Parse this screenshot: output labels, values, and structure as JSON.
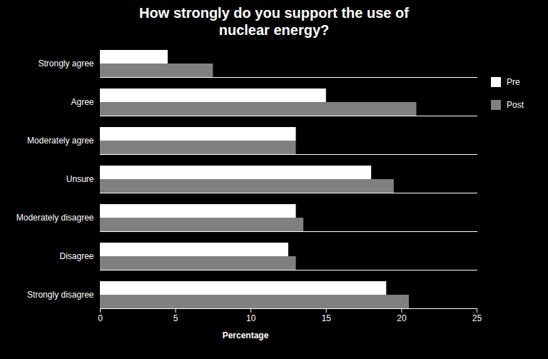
{
  "chart_data": {
    "type": "bar",
    "orientation": "horizontal",
    "title": "How strongly do you support the use of\nnuclear energy?",
    "categories": [
      "Strongly disagree",
      "Disagree",
      "Moderately disagree",
      "Unsure",
      "Moderately agree",
      "Agree",
      "Strongly agree"
    ],
    "series": [
      {
        "name": "Pre",
        "color": "#ffffff",
        "values": [
          19.0,
          12.5,
          13.0,
          18.0,
          13.0,
          15.0,
          4.5
        ]
      },
      {
        "name": "Post",
        "color": "#808080",
        "values": [
          20.5,
          13.0,
          13.5,
          19.5,
          13.0,
          21.0,
          7.5
        ]
      }
    ],
    "xlabel": "Percentage",
    "xlim": [
      0,
      25
    ],
    "xticks": [
      0,
      5,
      10,
      15,
      20,
      25
    ],
    "grid": false,
    "legend": "right"
  }
}
